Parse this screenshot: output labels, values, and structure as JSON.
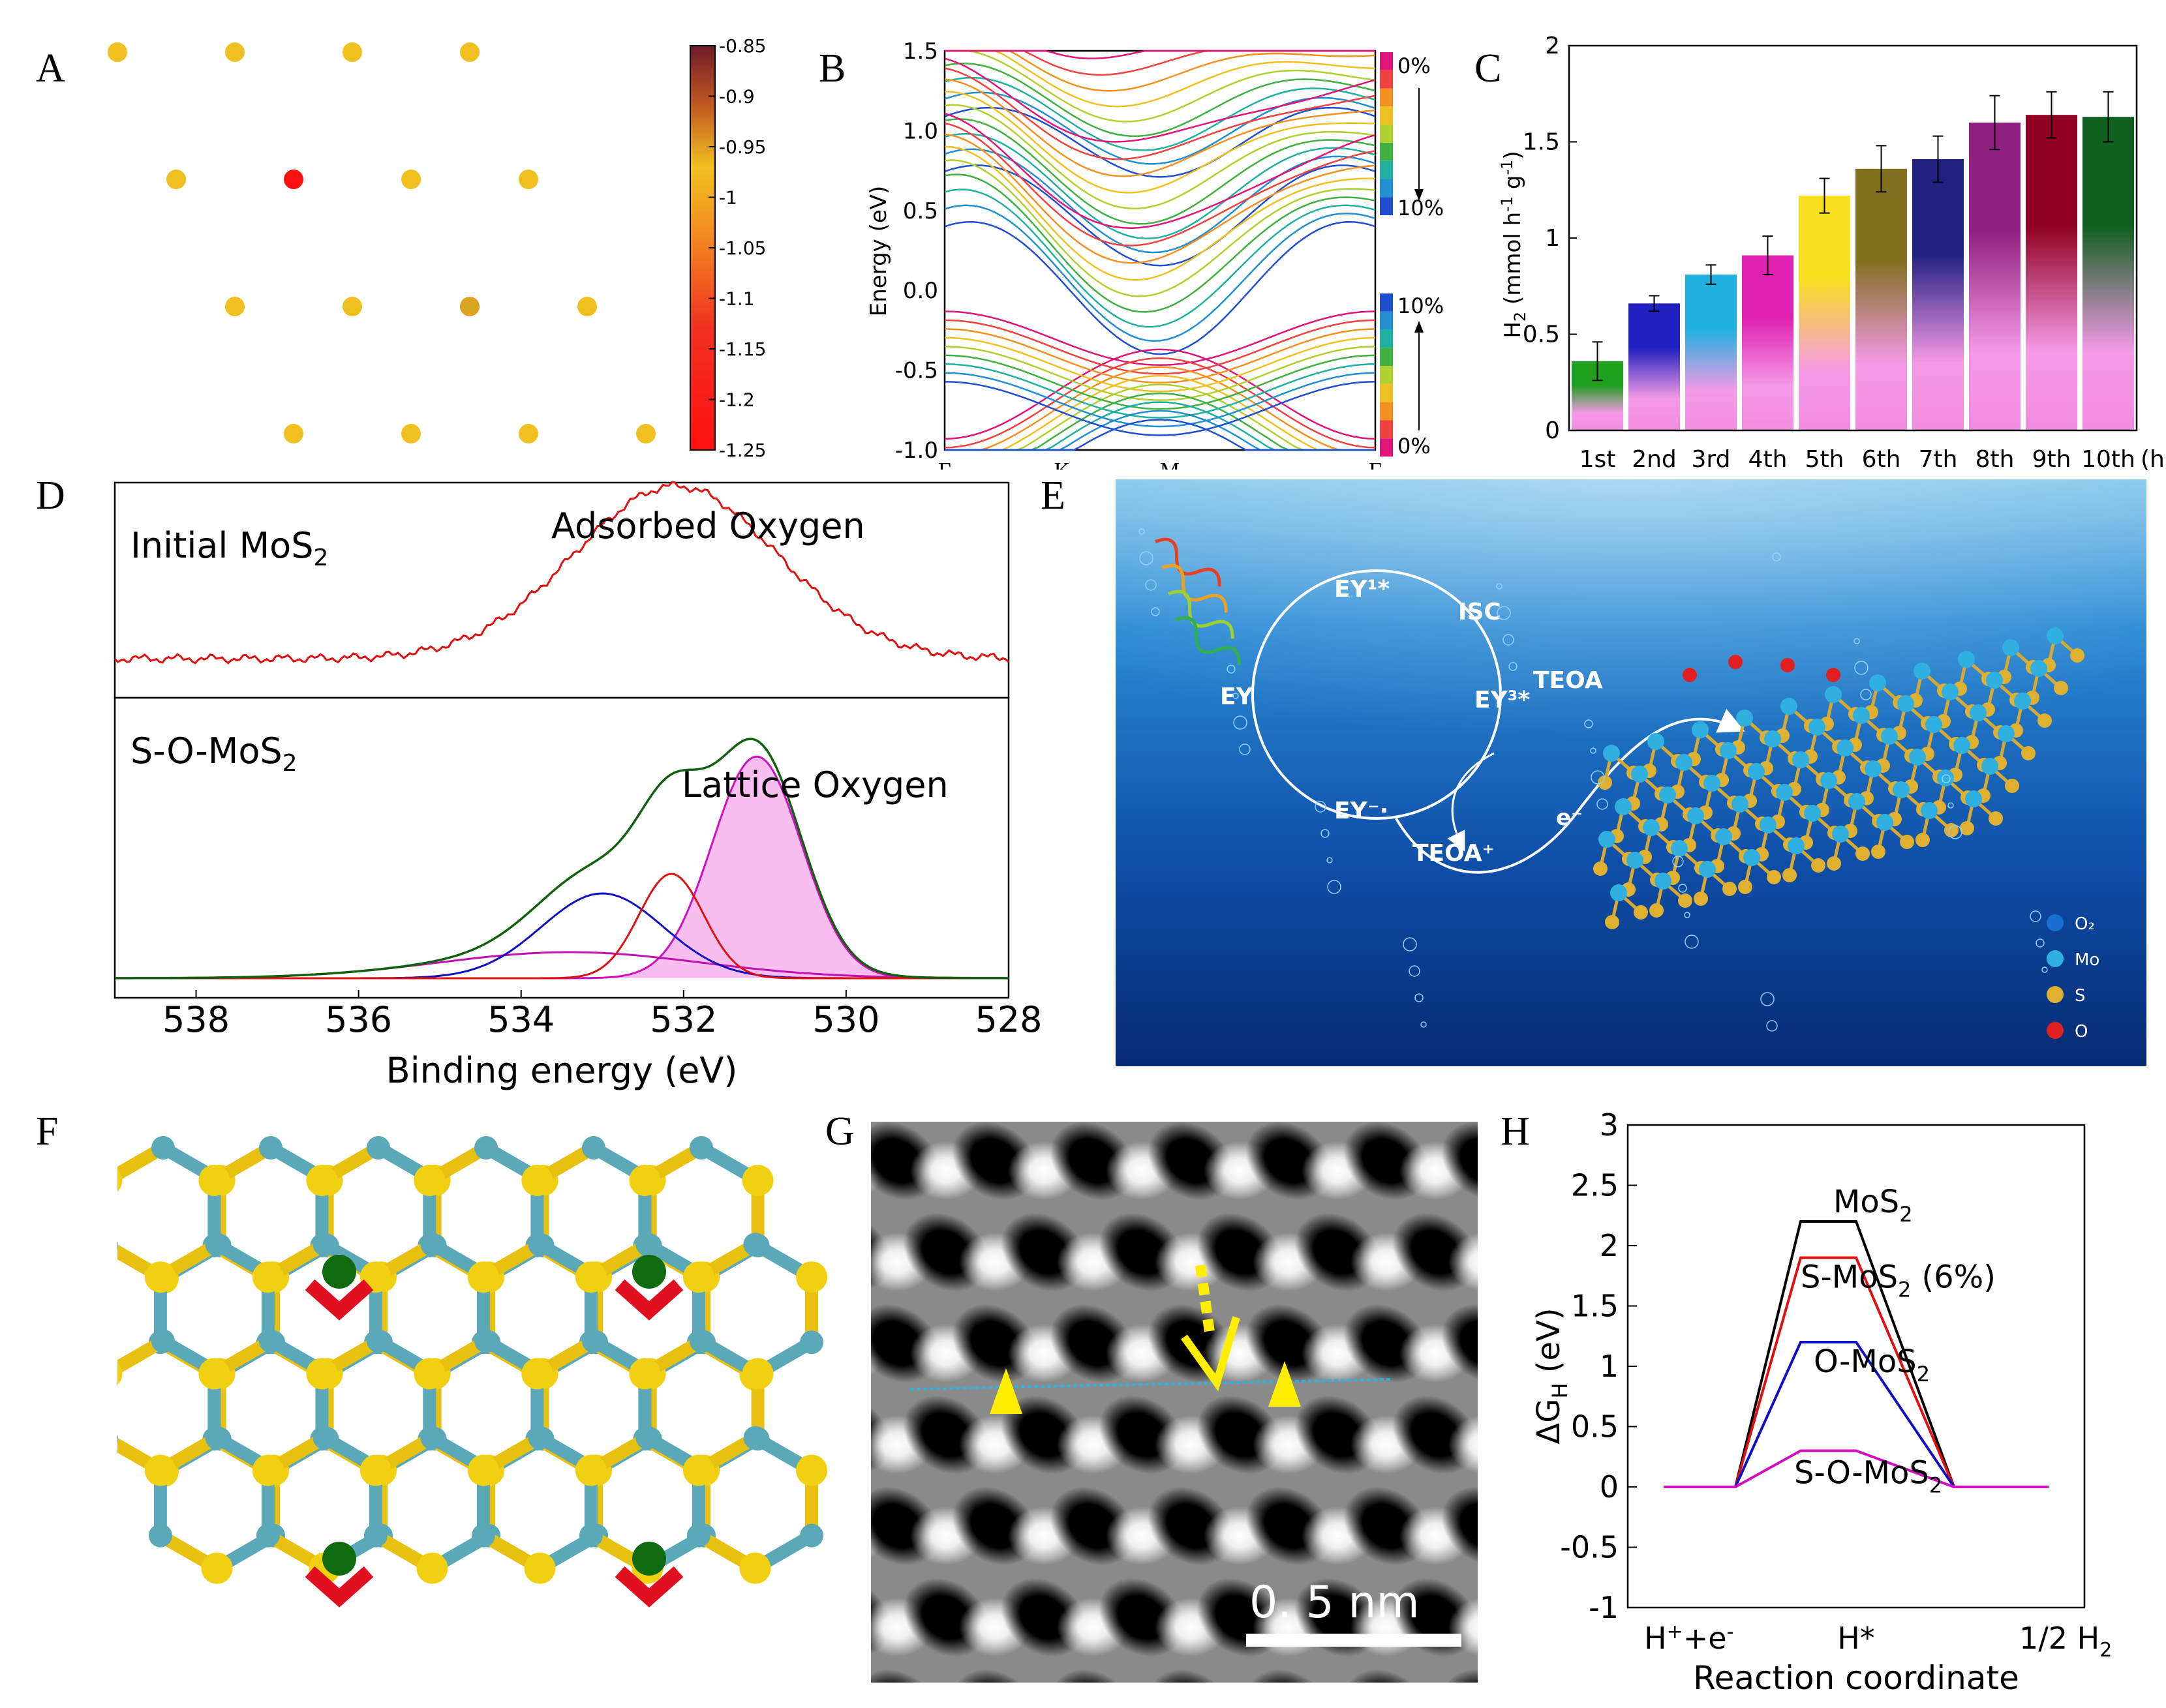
{
  "labels": {
    "A": "A",
    "B": "B",
    "C": "C",
    "D": "D",
    "E": "E",
    "F": "F",
    "G": "G",
    "H": "H"
  },
  "panelA": {
    "colorbar_ticks": [
      "-0.85",
      "-0.9",
      "-0.95",
      "-1",
      "-1.05",
      "-1.1",
      "-1.15",
      "-1.2",
      "-1.25"
    ],
    "colorbar_range": [
      -1.25,
      -0.85
    ],
    "colors": {
      "high": "#6e1a2a",
      "mid": "#f0c020",
      "low": "#ff1010"
    },
    "sites": [
      {
        "row": 0,
        "col": 0,
        "value": -0.95
      },
      {
        "row": 0,
        "col": 1,
        "value": -1.0
      },
      {
        "row": 0,
        "col": 2,
        "value": -0.95
      },
      {
        "row": 0,
        "col": 3,
        "value": -0.95
      },
      {
        "row": 1,
        "col": 0,
        "value": -1.0
      },
      {
        "row": 1,
        "col": 1,
        "value": -1.25
      },
      {
        "row": 1,
        "col": 2,
        "value": -0.95
      },
      {
        "row": 1,
        "col": 3,
        "value": -1.0
      },
      {
        "row": 2,
        "col": 0,
        "value": -0.95
      },
      {
        "row": 2,
        "col": 1,
        "value": -0.95
      },
      {
        "row": 2,
        "col": 2,
        "value": -0.9
      },
      {
        "row": 2,
        "col": 3,
        "value": -1.0
      },
      {
        "row": 3,
        "col": 0,
        "value": -0.95
      },
      {
        "row": 3,
        "col": 1,
        "value": -0.95
      },
      {
        "row": 3,
        "col": 2,
        "value": -1.0
      },
      {
        "row": 3,
        "col": 3,
        "value": -0.95
      }
    ]
  },
  "panelB": {
    "ylabel": "Energy (eV)",
    "yticks": [
      "1.5",
      "1.0",
      "0.5",
      "0.0",
      "-0.5",
      "-1.0"
    ],
    "ylim": [
      -1.0,
      1.5
    ],
    "xticks": [
      "Γ",
      "K",
      "M",
      "Γ"
    ],
    "legend_upper": [
      "0%",
      "10%"
    ],
    "legend_lower": [
      "10%",
      "0%"
    ],
    "colors": [
      "#e0157a",
      "#f04040",
      "#f39020",
      "#f0c020",
      "#b0d030",
      "#40b040",
      "#20b0a0",
      "#2090d0",
      "#1f4fd0"
    ]
  },
  "chart_data": [
    {
      "type": "bar",
      "title": "",
      "categories": [
        "1st",
        "2nd",
        "3rd",
        "4th",
        "5th",
        "6th",
        "7th",
        "8th",
        "9th",
        "10th"
      ],
      "values": [
        0.36,
        0.66,
        0.81,
        0.91,
        1.22,
        1.36,
        1.41,
        1.6,
        1.64,
        1.63
      ],
      "errors": [
        0.1,
        0.04,
        0.05,
        0.1,
        0.09,
        0.12,
        0.12,
        0.14,
        0.12,
        0.13
      ],
      "bar_colors": [
        "#20a020",
        "#2020c0",
        "#20b0e0",
        "#e020b0",
        "#f8e020",
        "#807020",
        "#202080",
        "#902080",
        "#900020",
        "#106020"
      ],
      "ylabel": "H2 (mmol h-1 g-1)",
      "xlabel_unit": "(h)",
      "yticks": [
        "0",
        "0.5",
        "1",
        "1.5",
        "2"
      ],
      "ylim": [
        0,
        2
      ]
    },
    {
      "type": "line",
      "xlabel": "Binding energy (eV)",
      "xticks": [
        "538",
        "536",
        "534",
        "532",
        "530",
        "528"
      ],
      "xlim": [
        539,
        528
      ],
      "top_label": "Initial MoS2",
      "top_annotation": "Adsorbed Oxygen",
      "bottom_label": "S-O-MoS2",
      "bottom_annotation": "Lattice Oxygen"
    },
    {
      "type": "line",
      "ylabel": "ΔGH (eV)",
      "yticks": [
        "3",
        "2.5",
        "2",
        "1.5",
        "1",
        "0.5",
        "0",
        "-0.5",
        "-1"
      ],
      "ylim": [
        -1,
        3
      ],
      "xticks": [
        "H⁺+e⁻",
        "H*",
        "1/2 H₂"
      ],
      "xlabel": "Reaction coordinate",
      "series": [
        {
          "name": "MoS2",
          "value": 2.2,
          "color": "#000000"
        },
        {
          "name": "S-MoS2 (6%)",
          "value": 1.9,
          "color": "#e01010"
        },
        {
          "name": "O-MoS2",
          "value": 1.2,
          "color": "#1010c0"
        },
        {
          "name": "S-O-MoS2",
          "value": 0.3,
          "color": "#d010c0"
        }
      ]
    }
  ],
  "panelD_text": {
    "top_label": "Initial MoS",
    "top_sub": "2",
    "top_annotation": "Adsorbed Oxygen",
    "bottom_label": "S-O-MoS",
    "bottom_sub": "2",
    "bottom_annotation": "Lattice Oxygen",
    "xlabel": "Binding energy (eV)"
  },
  "panelC_text": {
    "ylabel_main": "H",
    "ylabel_sub": "2",
    "ylabel_rest": " (mmol h",
    "sup1": "-1",
    "g": " g",
    "sup2": "-1",
    "close": ")",
    "unit": "(h)"
  },
  "panelE": {
    "cycle": {
      "ey1": "EY¹*",
      "isc": "ISC",
      "ey3": "EY³*",
      "teoa": "TEOA",
      "ey": "EY",
      "eym": "EY⁻·",
      "teoap": "TEOA⁺",
      "e": "e⁻"
    },
    "legend": [
      "O₂",
      "Mo",
      "S",
      "O"
    ]
  },
  "panelG": {
    "scale": "0. 5  nm"
  },
  "panelH_text": {
    "labels": [
      "MoS",
      "S-MoS",
      "O-MoS",
      "S-O-MoS"
    ],
    "sub": "2",
    "extra": "(6%)",
    "ylabel_main": "ΔG",
    "ylabel_sub": "H",
    "ylabel_rest": " (eV)",
    "x_left": "H",
    "x_left_sup": "+",
    "x_left_rest": "+e",
    "x_left_sup2": "-",
    "x_mid": "H*",
    "x_right": "1/2 H",
    "x_right_sub": "2",
    "xlabel": "Reaction coordinate"
  }
}
